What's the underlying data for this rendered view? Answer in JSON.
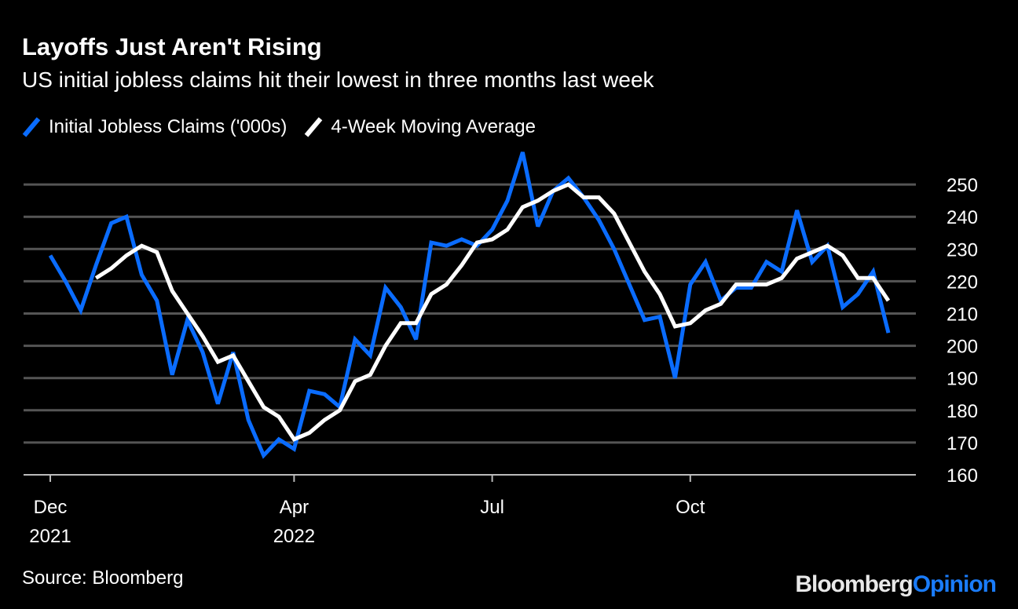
{
  "header": {
    "title": "Layoffs Just Aren't Rising",
    "subtitle": "US initial jobless claims hit their lowest in three months last week"
  },
  "footer": {
    "source": "Source: Bloomberg",
    "logo_part1": "Bloomberg",
    "logo_part2": "Opinion"
  },
  "colors": {
    "claims": "#0a6cff",
    "average": "#ffffff",
    "grid": "#555555",
    "background": "#000000"
  },
  "chart_data": {
    "type": "line",
    "title": "Layoffs Just Aren't Rising",
    "subtitle": "US initial jobless claims hit their lowest in three months last week",
    "x_unit": "week index from early Dec 2021",
    "x_ticks": [
      {
        "week": 0,
        "label": "Dec",
        "label2": "2021"
      },
      {
        "week": 16,
        "label": "Apr",
        "label2": "2022"
      },
      {
        "week": 29,
        "label": "Jul",
        "label2": ""
      },
      {
        "week": 42,
        "label": "Oct",
        "label2": ""
      }
    ],
    "ylim": [
      160,
      255
    ],
    "y_ticks": [
      160,
      170,
      180,
      190,
      200,
      210,
      220,
      230,
      240,
      250
    ],
    "y_axis_side": "right",
    "grid": true,
    "legend_placement": "top-left",
    "series": [
      {
        "name": "Initial Jobless Claims ('000s)",
        "color": "#0a6cff",
        "start_week": 0,
        "values": [
          228,
          220,
          211,
          225,
          238,
          240,
          222,
          214,
          191,
          208,
          198,
          182,
          198,
          177,
          166,
          171,
          168,
          186,
          185,
          181,
          202,
          197,
          218,
          212,
          202,
          232,
          231,
          233,
          231,
          236,
          245,
          260,
          237,
          248,
          252,
          246,
          239,
          230,
          219,
          208,
          209,
          190,
          219,
          226,
          214,
          218,
          218,
          226,
          223,
          242,
          226,
          231,
          212,
          216,
          223,
          204
        ]
      },
      {
        "name": "4-Week Moving Average",
        "color": "#ffffff",
        "start_week": 3,
        "values": [
          221,
          224,
          228,
          231,
          229,
          217,
          210,
          203,
          195,
          197,
          189,
          181,
          178,
          171,
          173,
          177,
          180,
          189,
          191,
          200,
          207,
          207,
          216,
          219,
          225,
          232,
          233,
          236,
          243,
          245,
          248,
          250,
          246,
          246,
          241,
          232,
          223,
          216,
          206,
          207,
          211,
          213,
          219,
          219,
          219,
          221,
          227,
          229,
          231,
          228,
          221,
          221,
          214
        ]
      }
    ]
  }
}
